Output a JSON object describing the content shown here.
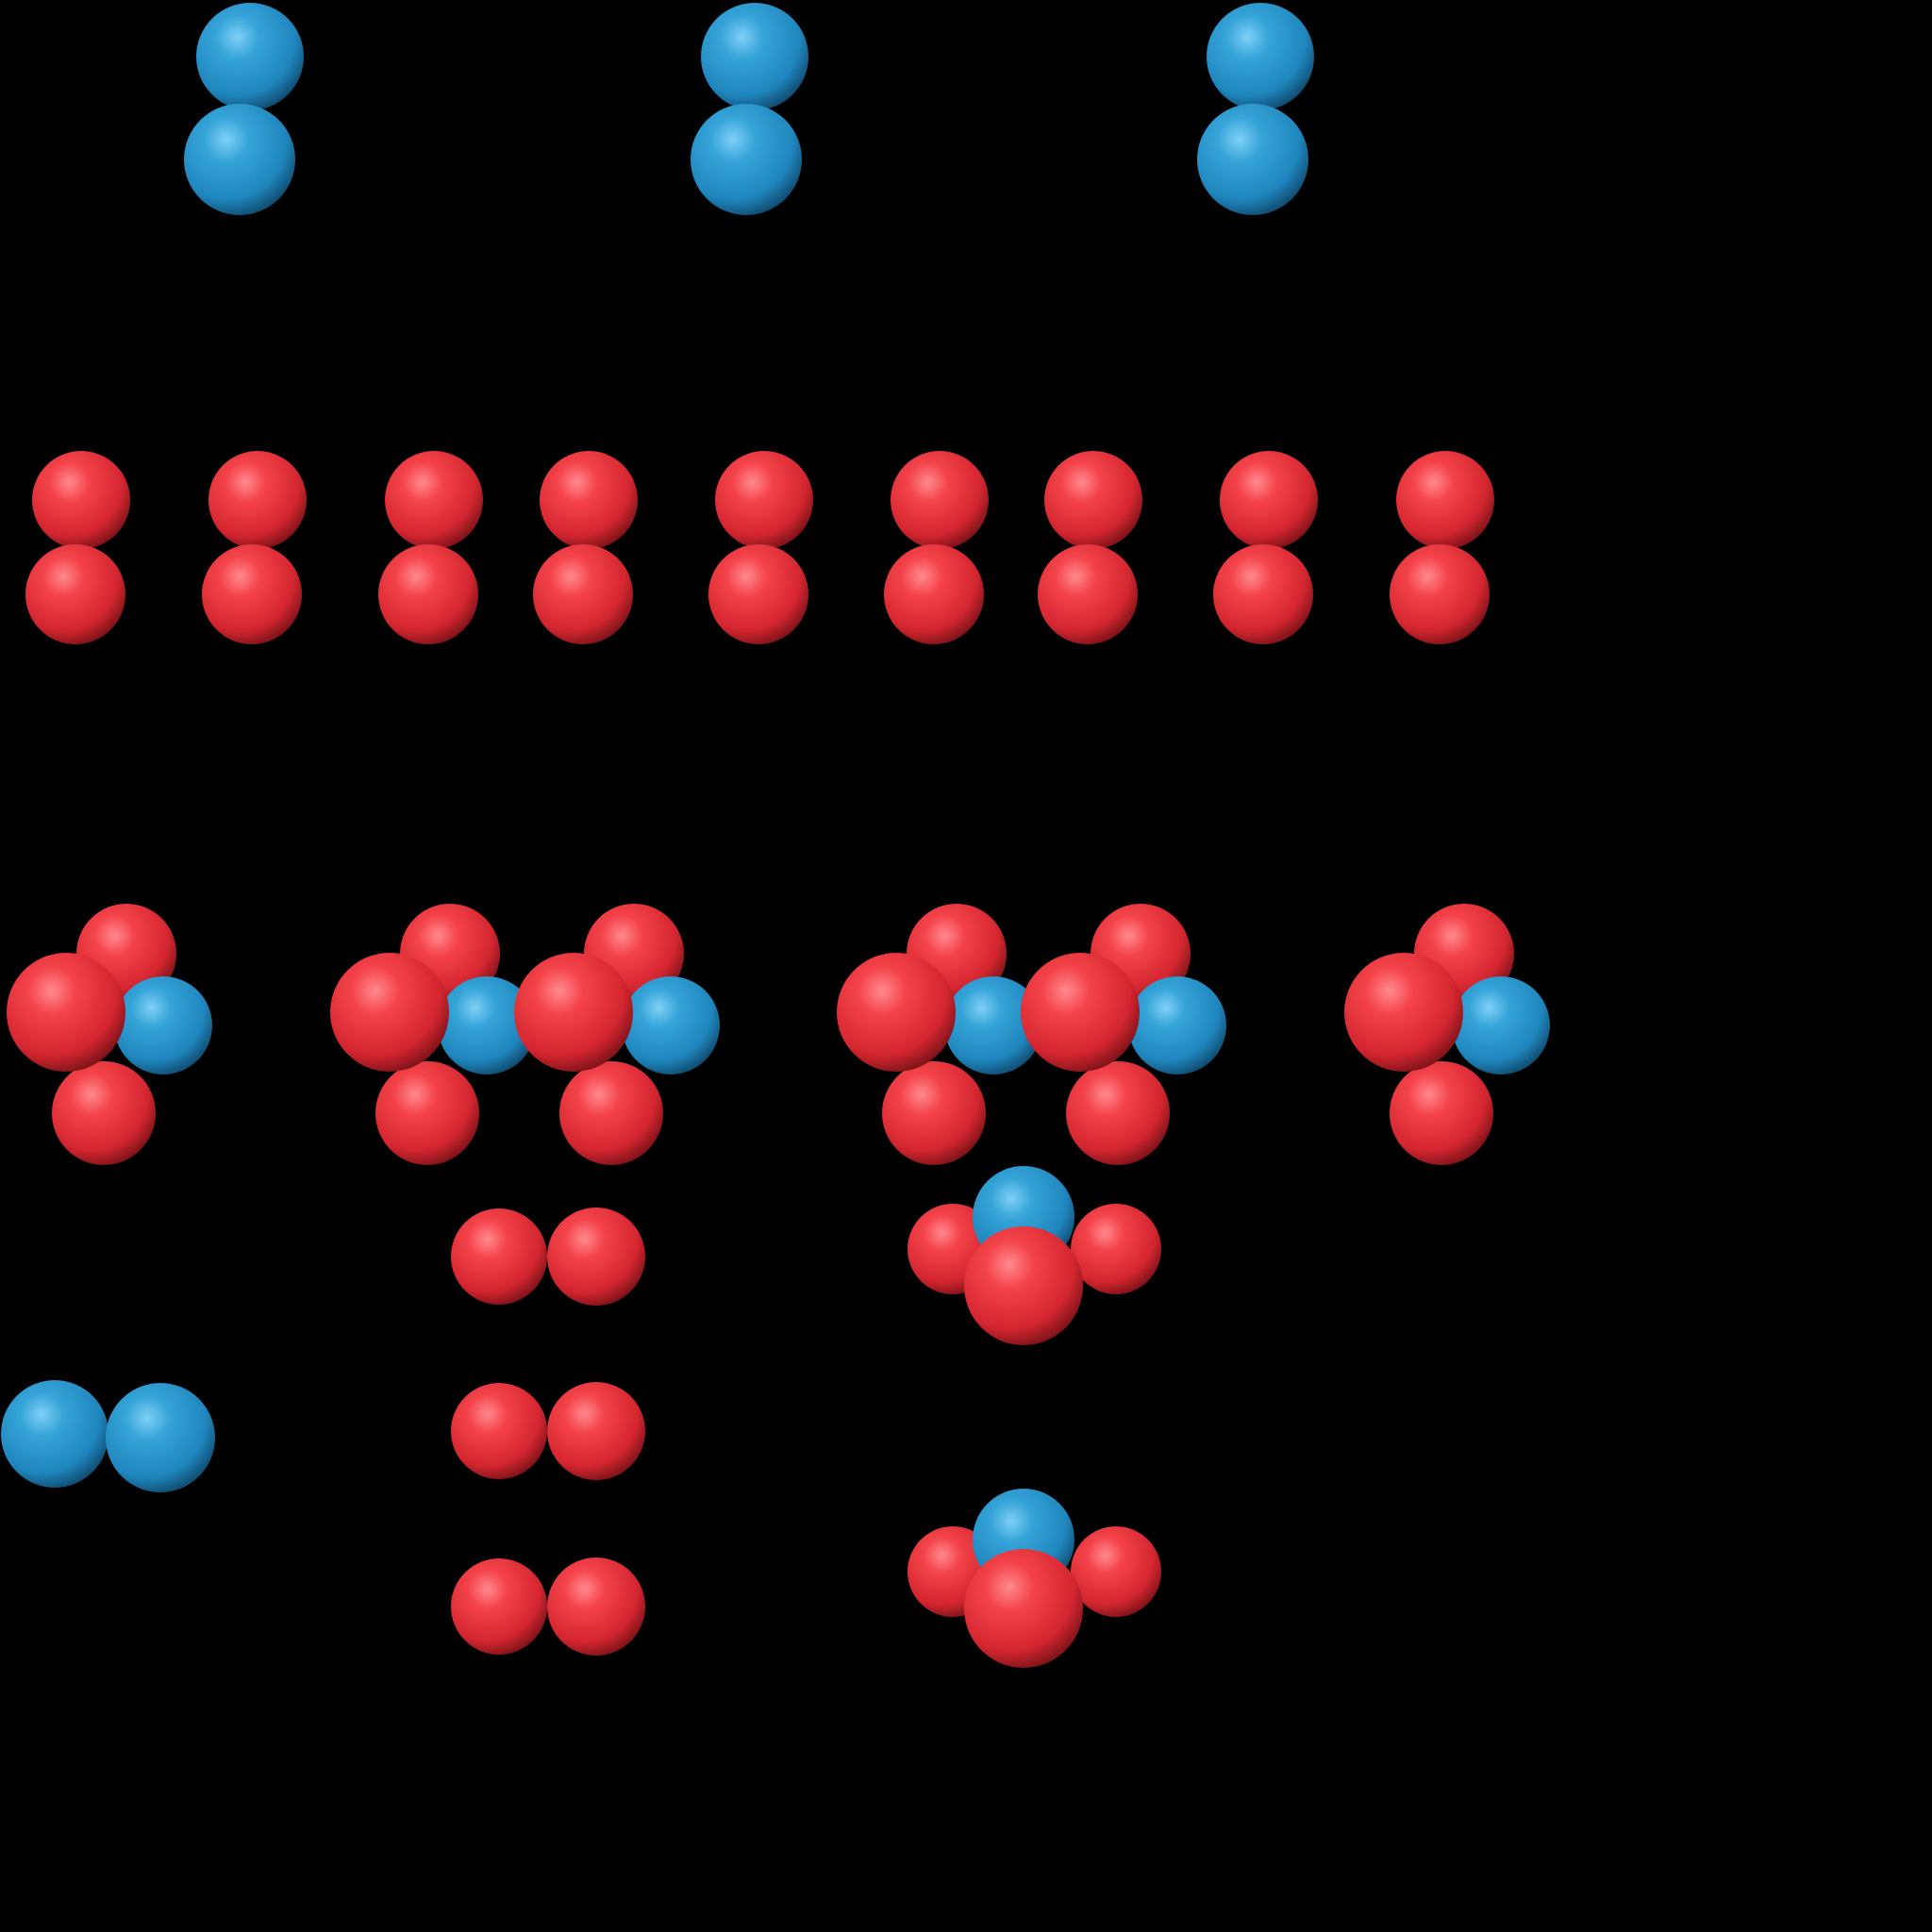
{
  "colors": {
    "background": "#000000",
    "oxygen_atom": "#e8323a",
    "nitrogen_atom": "#2a94cc"
  },
  "scene": {
    "molecules": [
      {
        "kind": "N2",
        "orientation": "vertical",
        "count": 3
      },
      {
        "kind": "O2",
        "orientation": "vertical",
        "count": 9
      },
      {
        "kind": "NO3",
        "orientation": "left-facing",
        "count": 6
      },
      {
        "kind": "O2",
        "orientation": "horizontal",
        "count": 3
      },
      {
        "kind": "NO3",
        "orientation": "down-facing",
        "count": 2
      },
      {
        "kind": "N2",
        "orientation": "horizontal",
        "count": 1
      }
    ]
  }
}
